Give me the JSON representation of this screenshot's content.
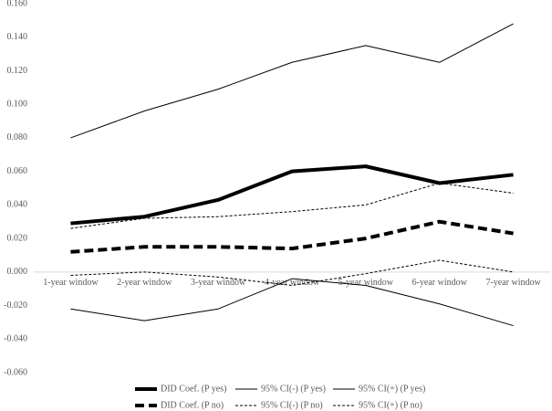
{
  "chart_data": {
    "type": "line",
    "categories": [
      "1-year window",
      "2-year window",
      "3-year window",
      "4-year window",
      "5-year window",
      "6-year window",
      "7-year window"
    ],
    "series": [
      {
        "name": "DID Coef. (P yes)",
        "color": "#000000",
        "line_width": 4,
        "dash": false,
        "values": [
          0.029,
          0.033,
          0.043,
          0.06,
          0.063,
          0.053,
          0.058
        ]
      },
      {
        "name": "95% CI(-) (P yes)",
        "color": "#000000",
        "line_width": 1,
        "dash": false,
        "values": [
          -0.022,
          -0.029,
          -0.022,
          -0.004,
          -0.008,
          -0.019,
          -0.032
        ]
      },
      {
        "name": "95% CI(+) (P yes)",
        "color": "#000000",
        "line_width": 1,
        "dash": false,
        "values": [
          0.08,
          0.096,
          0.109,
          0.125,
          0.135,
          0.125,
          0.148
        ]
      },
      {
        "name": "DID Coef. (P no)",
        "color": "#000000",
        "line_width": 4,
        "dash": true,
        "values": [
          0.012,
          0.015,
          0.015,
          0.014,
          0.02,
          0.03,
          0.023
        ]
      },
      {
        "name": "95% CI(-) (P no)",
        "color": "#000000",
        "line_width": 1,
        "dash": true,
        "values": [
          -0.002,
          0.0,
          -0.003,
          -0.008,
          -0.001,
          0.007,
          0.0
        ]
      },
      {
        "name": "95% CI(+) (P no)",
        "color": "#000000",
        "line_width": 1,
        "dash": true,
        "values": [
          0.026,
          0.032,
          0.033,
          0.036,
          0.04,
          0.053,
          0.047
        ]
      }
    ],
    "ylim": [
      -0.06,
      0.16
    ],
    "yticks": [
      {
        "value": -0.06,
        "label": "-0.060"
      },
      {
        "value": -0.04,
        "label": "-0.040"
      },
      {
        "value": -0.02,
        "label": "-0.020"
      },
      {
        "value": 0,
        "label": "0.000"
      },
      {
        "value": 0.02,
        "label": "0.020"
      },
      {
        "value": 0.04,
        "label": "0.040"
      },
      {
        "value": 0.06,
        "label": "0.060"
      },
      {
        "value": 0.08,
        "label": "0.080"
      },
      {
        "value": 0.1,
        "label": "0.100"
      },
      {
        "value": 0.12,
        "label": "0.120"
      },
      {
        "value": 0.14,
        "label": "0.140"
      },
      {
        "value": 0.16,
        "label": "0.160"
      }
    ],
    "grid": false
  }
}
